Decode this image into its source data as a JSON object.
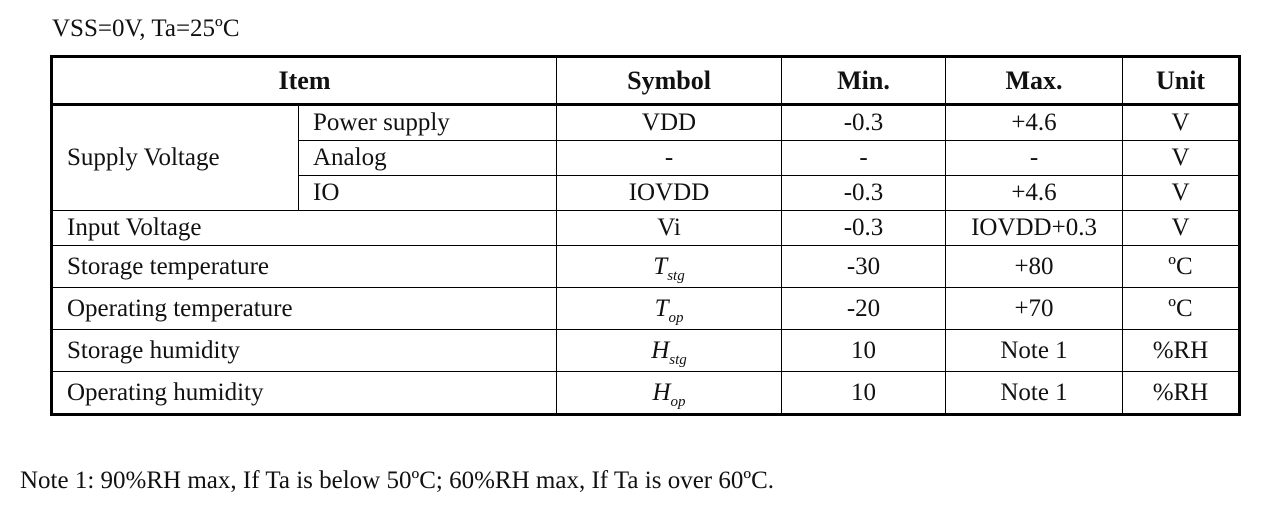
{
  "conditions": "VSS=0V, Ta=25ºC",
  "table": {
    "headers": {
      "item": "Item",
      "symbol": "Symbol",
      "min": "Min.",
      "max": "Max.",
      "unit": "Unit"
    },
    "supply_group": {
      "label": "Supply Voltage",
      "rows": [
        {
          "sub": "Power supply",
          "symbol": "VDD",
          "min": "-0.3",
          "max": "+4.6",
          "unit": "V"
        },
        {
          "sub": "Analog",
          "symbol": "-",
          "min": "-",
          "max": "-",
          "unit": "V"
        },
        {
          "sub": "IO",
          "symbol": "IOVDD",
          "min": "-0.3",
          "max": "+4.6",
          "unit": "V"
        }
      ]
    },
    "input_voltage": {
      "item": "Input Voltage",
      "symbol": "Vi",
      "min": "-0.3",
      "max": "IOVDD+0.3",
      "unit": "V"
    },
    "storage_temperature": {
      "item": "Storage temperature",
      "symbol_main": "T",
      "symbol_sub": "stg",
      "min": "-30",
      "max": "+80",
      "unit": "ºC"
    },
    "operating_temperature": {
      "item": "Operating temperature",
      "symbol_main": "T",
      "symbol_sub": "op",
      "min": "-20",
      "max": "+70",
      "unit": "ºC"
    },
    "storage_humidity": {
      "item": "Storage humidity",
      "symbol_main": "H",
      "symbol_sub": "stg",
      "min": "10",
      "max": "Note 1",
      "unit": "%RH"
    },
    "operating_humidity": {
      "item": "Operating humidity",
      "symbol_main": "H",
      "symbol_sub": "op",
      "min": "10",
      "max": "Note 1",
      "unit": "%RH"
    }
  },
  "note": "Note 1: 90%RH max, If Ta is below 50ºC; 60%RH max, If Ta is over 60ºC."
}
